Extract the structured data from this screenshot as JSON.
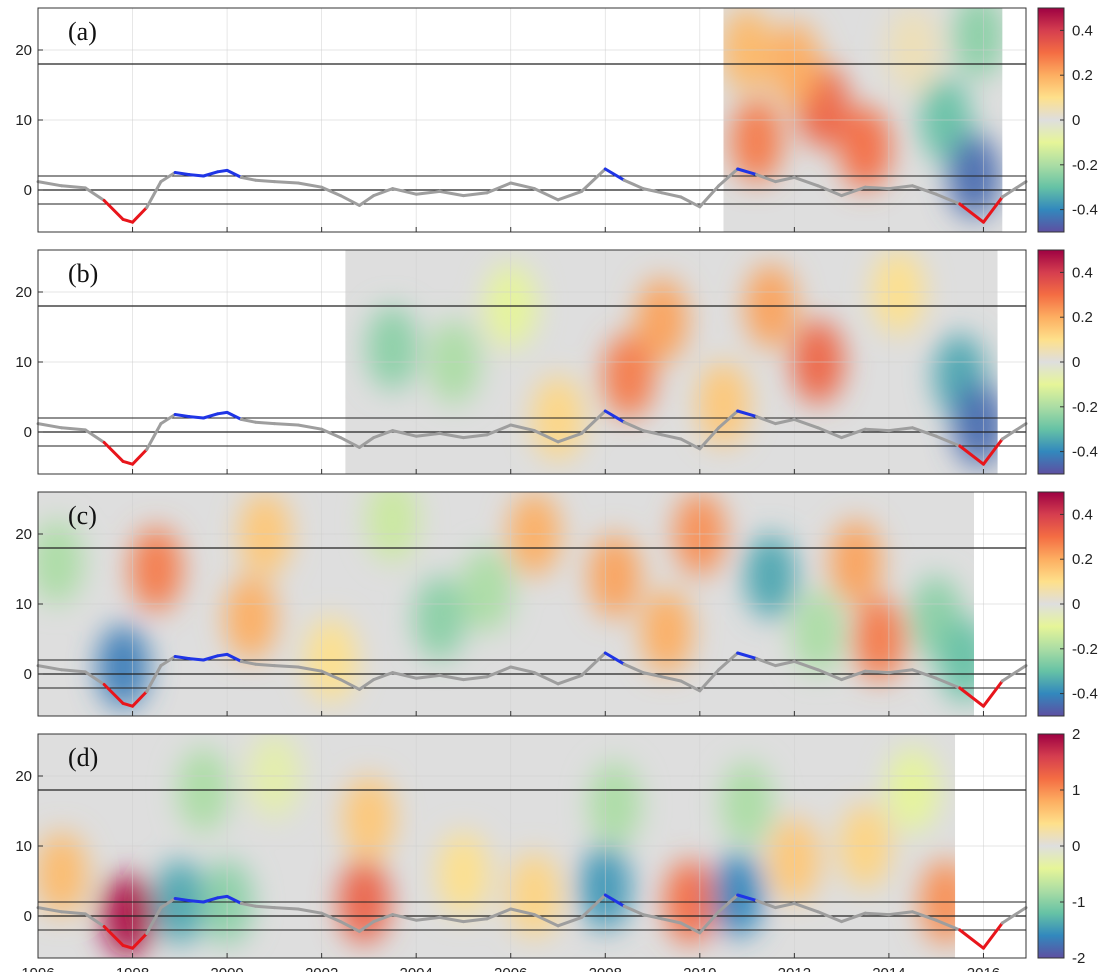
{
  "chart_data": {
    "type": "heatmap",
    "title": "",
    "xlabel": "",
    "ylabel": "",
    "x_ticks": [
      1996,
      1998,
      2000,
      2002,
      2004,
      2006,
      2008,
      2010,
      2012,
      2014,
      2016
    ],
    "xlim": [
      1996,
      2016.9
    ],
    "ylim": [
      -6,
      26
    ],
    "y_ticks": [
      0,
      10,
      20
    ],
    "grid": true,
    "reference_lines_y": [
      18,
      2,
      0,
      -2
    ],
    "index_curve": {
      "x": [
        1996,
        1996.5,
        1997,
        1997.4,
        1997.8,
        1998,
        1998.3,
        1998.6,
        1998.9,
        1999.2,
        1999.5,
        1999.8,
        2000,
        2000.3,
        2000.6,
        2001,
        2001.5,
        2002,
        2002.4,
        2002.8,
        2003.1,
        2003.5,
        2004,
        2004.5,
        2005,
        2005.5,
        2006,
        2006.5,
        2007,
        2007.5,
        2008,
        2008.4,
        2008.8,
        2009.2,
        2009.6,
        2010,
        2010.4,
        2010.8,
        2011.2,
        2011.6,
        2012,
        2012.5,
        2013,
        2013.5,
        2014,
        2014.5,
        2015,
        2015.5,
        2016,
        2016.4,
        2016.9
      ],
      "y": [
        1.2,
        0.6,
        0.3,
        -1.5,
        -4.2,
        -4.6,
        -2.5,
        1.2,
        2.5,
        2.2,
        2.0,
        2.6,
        2.8,
        1.8,
        1.4,
        1.2,
        1.0,
        0.4,
        -0.8,
        -2.2,
        -0.8,
        0.2,
        -0.6,
        -0.2,
        -0.8,
        -0.4,
        1.0,
        0.2,
        -1.4,
        -0.2,
        3.0,
        1.4,
        0.2,
        -0.4,
        -1.0,
        -2.4,
        0.6,
        3.0,
        2.2,
        1.2,
        1.8,
        0.6,
        -0.8,
        0.4,
        0.2,
        0.6,
        -0.6,
        -2.0,
        -4.6,
        -1.0,
        1.2
      ],
      "colors": {
        "base": "#9e9e9e",
        "positive_event": "#1f35e6",
        "negative_event": "#e8151b"
      },
      "event_threshold": 2
    },
    "colormap": [
      "#5e4fa2",
      "#3288bd",
      "#66c2a5",
      "#abdda4",
      "#e6f598",
      "#dedede",
      "#fee08b",
      "#fdae61",
      "#f46d43",
      "#d53e4f",
      "#9e0142"
    ],
    "panels": [
      {
        "label": "(a)",
        "data_x_range": [
          2010.5,
          2016.4
        ],
        "colorbar": {
          "min": -0.5,
          "max": 0.5,
          "ticks": [
            0.4,
            0.2,
            0,
            -0.2,
            -0.4
          ],
          "tick_labels": [
            "0.4",
            "0.2",
            "0",
            "-0.2",
            "-0.4"
          ]
        },
        "blobs": [
          {
            "x": 2012.6,
            "y": 12,
            "v": 0.32
          },
          {
            "x": 2013.5,
            "y": 6,
            "v": 0.3
          },
          {
            "x": 2011.2,
            "y": 7,
            "v": 0.28
          },
          {
            "x": 2011.0,
            "y": 20,
            "v": 0.18
          },
          {
            "x": 2012.0,
            "y": 18,
            "v": 0.2
          },
          {
            "x": 2015.2,
            "y": 10,
            "v": -0.3
          },
          {
            "x": 2015.8,
            "y": 2,
            "v": -0.45
          },
          {
            "x": 2015.9,
            "y": 22,
            "v": -0.25
          },
          {
            "x": 2014.5,
            "y": 20,
            "v": 0.05
          }
        ]
      },
      {
        "label": "(b)",
        "data_x_range": [
          2002.5,
          2016.3
        ],
        "colorbar": {
          "min": -0.5,
          "max": 0.5,
          "ticks": [
            0.4,
            0.2,
            0,
            -0.2,
            -0.4
          ],
          "tick_labels": [
            "0.4",
            "0.2",
            "0",
            "-0.2",
            "-0.4"
          ]
        },
        "blobs": [
          {
            "x": 2003.5,
            "y": 12,
            "v": -0.25
          },
          {
            "x": 2004.8,
            "y": 10,
            "v": -0.2
          },
          {
            "x": 2006.0,
            "y": 18,
            "v": -0.1
          },
          {
            "x": 2008.5,
            "y": 8,
            "v": 0.28
          },
          {
            "x": 2009.2,
            "y": 16,
            "v": 0.22
          },
          {
            "x": 2012.5,
            "y": 10,
            "v": 0.32
          },
          {
            "x": 2011.5,
            "y": 18,
            "v": 0.22
          },
          {
            "x": 2010.5,
            "y": 4,
            "v": 0.15
          },
          {
            "x": 2015.5,
            "y": 8,
            "v": -0.35
          },
          {
            "x": 2015.9,
            "y": 1,
            "v": -0.45
          },
          {
            "x": 2014.2,
            "y": 20,
            "v": 0.1
          },
          {
            "x": 2007.0,
            "y": 2,
            "v": 0.12
          }
        ]
      },
      {
        "label": "(c)",
        "data_x_range": [
          1996,
          2015.8
        ],
        "colorbar": {
          "min": -0.5,
          "max": 0.5,
          "ticks": [
            0.4,
            0.2,
            0,
            -0.2,
            -0.4
          ],
          "tick_labels": [
            "0.4",
            "0.2",
            "0",
            "-0.2",
            "-0.4"
          ]
        },
        "blobs": [
          {
            "x": 1997.8,
            "y": 1,
            "v": -0.42
          },
          {
            "x": 1998.5,
            "y": 15,
            "v": 0.28
          },
          {
            "x": 1996.4,
            "y": 16,
            "v": -0.2
          },
          {
            "x": 2000.5,
            "y": 8,
            "v": 0.2
          },
          {
            "x": 2000.8,
            "y": 20,
            "v": 0.15
          },
          {
            "x": 2003.5,
            "y": 22,
            "v": -0.15
          },
          {
            "x": 2004.5,
            "y": 8,
            "v": -0.25
          },
          {
            "x": 2005.5,
            "y": 12,
            "v": -0.2
          },
          {
            "x": 2006.5,
            "y": 20,
            "v": 0.2
          },
          {
            "x": 2008.2,
            "y": 14,
            "v": 0.22
          },
          {
            "x": 2009.3,
            "y": 6,
            "v": 0.2
          },
          {
            "x": 2010.0,
            "y": 20,
            "v": 0.25
          },
          {
            "x": 2011.5,
            "y": 14,
            "v": -0.35
          },
          {
            "x": 2012.5,
            "y": 6,
            "v": -0.2
          },
          {
            "x": 2013.3,
            "y": 16,
            "v": 0.22
          },
          {
            "x": 2013.8,
            "y": 5,
            "v": 0.28
          },
          {
            "x": 2015.0,
            "y": 8,
            "v": -0.25
          },
          {
            "x": 2015.6,
            "y": 2,
            "v": -0.3
          },
          {
            "x": 2002.2,
            "y": 2,
            "v": 0.1
          }
        ]
      },
      {
        "label": "(d)",
        "data_x_range": [
          1996,
          2015.4
        ],
        "colorbar": {
          "min": -2,
          "max": 2,
          "ticks": [
            2,
            1,
            0,
            -1,
            -2
          ],
          "tick_labels": [
            "2",
            "1",
            "0",
            "-1",
            "-2"
          ]
        },
        "blobs": [
          {
            "x": 1997.9,
            "y": 0,
            "v": 1.9
          },
          {
            "x": 1996.5,
            "y": 6,
            "v": 0.7
          },
          {
            "x": 1999.0,
            "y": 2,
            "v": -1.4
          },
          {
            "x": 2000.0,
            "y": 2,
            "v": -1.0
          },
          {
            "x": 1999.5,
            "y": 18,
            "v": -0.8
          },
          {
            "x": 2002.9,
            "y": 2,
            "v": 1.3
          },
          {
            "x": 2003.0,
            "y": 14,
            "v": 0.6
          },
          {
            "x": 2005.0,
            "y": 6,
            "v": 0.4
          },
          {
            "x": 2006.5,
            "y": 3,
            "v": 0.5
          },
          {
            "x": 2008.0,
            "y": 4,
            "v": -1.5
          },
          {
            "x": 2008.2,
            "y": 16,
            "v": -0.8
          },
          {
            "x": 2009.8,
            "y": 2,
            "v": 1.2
          },
          {
            "x": 2010.8,
            "y": 3,
            "v": -1.6
          },
          {
            "x": 2011.0,
            "y": 16,
            "v": -0.8
          },
          {
            "x": 2012.0,
            "y": 8,
            "v": 0.6
          },
          {
            "x": 2013.5,
            "y": 10,
            "v": 0.5
          },
          {
            "x": 2014.5,
            "y": 18,
            "v": -0.4
          },
          {
            "x": 2015.2,
            "y": 2,
            "v": 1.0
          },
          {
            "x": 2001.0,
            "y": 20,
            "v": -0.3
          }
        ]
      }
    ]
  }
}
